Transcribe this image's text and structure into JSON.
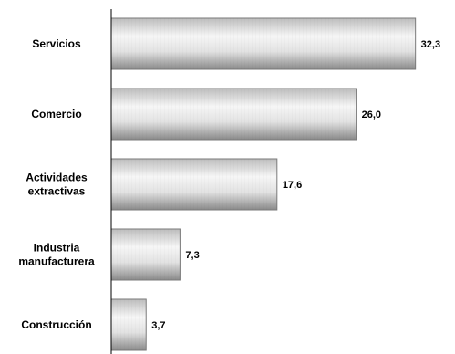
{
  "chart_data": {
    "type": "bar",
    "orientation": "horizontal",
    "categories": [
      [
        "Servicios"
      ],
      [
        "Comercio"
      ],
      [
        "Actividades",
        "extractivas"
      ],
      [
        "Industria",
        "manufacturera"
      ],
      [
        "Construcción"
      ]
    ],
    "values": [
      32.3,
      26.0,
      17.6,
      7.3,
      3.7
    ],
    "value_labels": [
      "32,3",
      "26,0",
      "17,6",
      "7,3",
      "3,7"
    ],
    "title": "",
    "xlabel": "",
    "ylabel": "",
    "xlim": [
      0,
      33.3
    ],
    "grid": false,
    "legend": "none",
    "colors": {
      "bar_light": "#f6f6f6",
      "bar_mid": "#d2d2d2",
      "bar_dark": "#8a8a8a",
      "bar_stroke": "#7a7a7a",
      "axis": "#000000"
    }
  }
}
